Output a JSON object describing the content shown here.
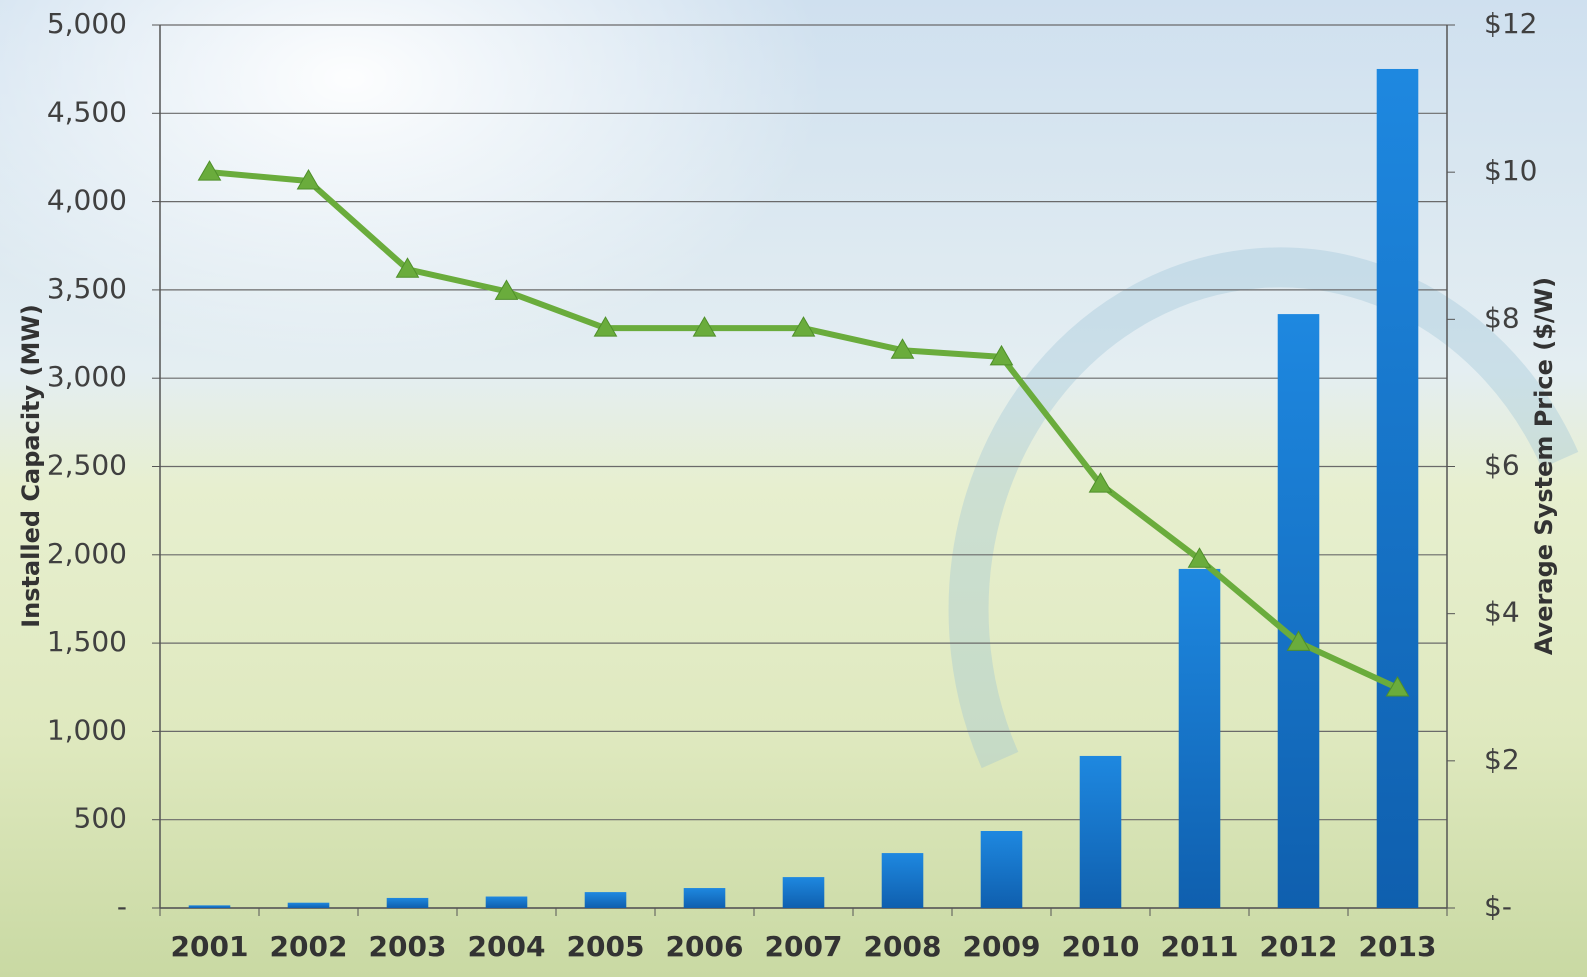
{
  "chart_data": {
    "type": "combo",
    "y_label": "Installed Capacity (MW)",
    "y2_label": "Average System Price ($/W)",
    "categories": [
      "2001",
      "2002",
      "2003",
      "2004",
      "2005",
      "2006",
      "2007",
      "2008",
      "2009",
      "2010",
      "2011",
      "2012",
      "2013"
    ],
    "series": [
      {
        "type": "bar",
        "color": "#1a7fd4",
        "values": [
          15,
          30,
          57,
          65,
          90,
          113,
          175,
          311,
          436,
          861,
          1920,
          3363,
          4751
        ]
      },
      {
        "type": "line",
        "axis": "y2",
        "color": "#6aac3c",
        "values": [
          10.0,
          9.88,
          8.68,
          8.38,
          7.88,
          7.88,
          7.88,
          7.58,
          7.49,
          5.76,
          4.74,
          3.61,
          2.99
        ]
      }
    ],
    "ylim": [
      0,
      5000
    ],
    "yticks": [
      {
        "value": 0,
        "label": "-"
      },
      500,
      {
        "value": 1000,
        "label": "1,000"
      },
      {
        "value": 1500,
        "label": "1,500"
      },
      {
        "value": 2000,
        "label": "2,000"
      },
      {
        "value": 2500,
        "label": "2,500"
      },
      {
        "value": 3000,
        "label": "3,000"
      },
      {
        "value": 3500,
        "label": "3,500"
      },
      {
        "value": 4000,
        "label": "4,000"
      },
      {
        "value": 4500,
        "label": "4,500"
      },
      {
        "value": 5000,
        "label": "5,000"
      }
    ],
    "y2lim": [
      0,
      12
    ],
    "y2ticks": [
      {
        "value": 0,
        "label": "$-"
      },
      {
        "value": 2,
        "label": "$2"
      },
      {
        "value": 4,
        "label": "$4"
      },
      {
        "value": 6,
        "label": "$6"
      },
      {
        "value": 8,
        "label": "$8"
      },
      {
        "value": 10,
        "label": "$10"
      },
      {
        "value": 12,
        "label": "$12"
      }
    ],
    "grid": true
  }
}
